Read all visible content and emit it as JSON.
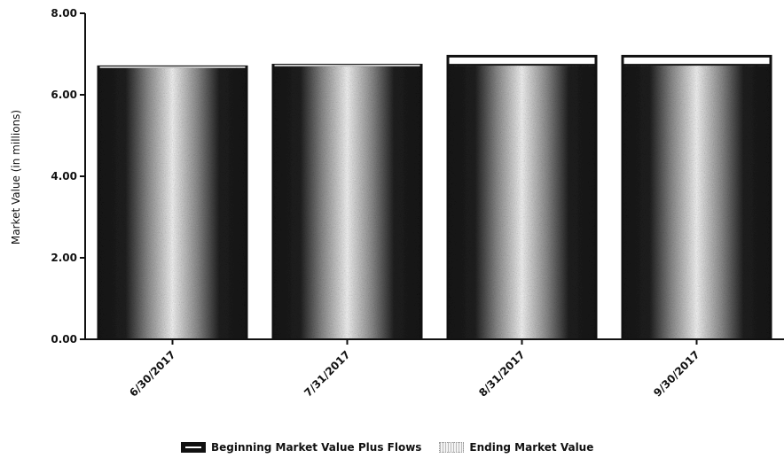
{
  "chart_data": {
    "type": "bar",
    "categories": [
      "6/30/2017",
      "7/31/2017",
      "8/31/2017",
      "9/30/2017"
    ],
    "series": [
      {
        "name": "Beginning Market Value Plus Flows",
        "values": [
          6.72,
          6.76,
          6.98,
          6.98
        ]
      },
      {
        "name": "Ending Market Value",
        "values": [
          6.72,
          6.76,
          6.78,
          6.78
        ]
      }
    ],
    "xlabel": "",
    "ylabel": "Market Value (in millions)",
    "ylim": [
      0,
      8
    ],
    "yticks": [
      "0.00",
      "2.00",
      "4.00",
      "6.00",
      "8.00"
    ],
    "grid": false,
    "legend_position": "bottom",
    "colors": {
      "begin": "#111111",
      "end_light": "#f5f5f5",
      "end_dark": "#141414"
    }
  }
}
